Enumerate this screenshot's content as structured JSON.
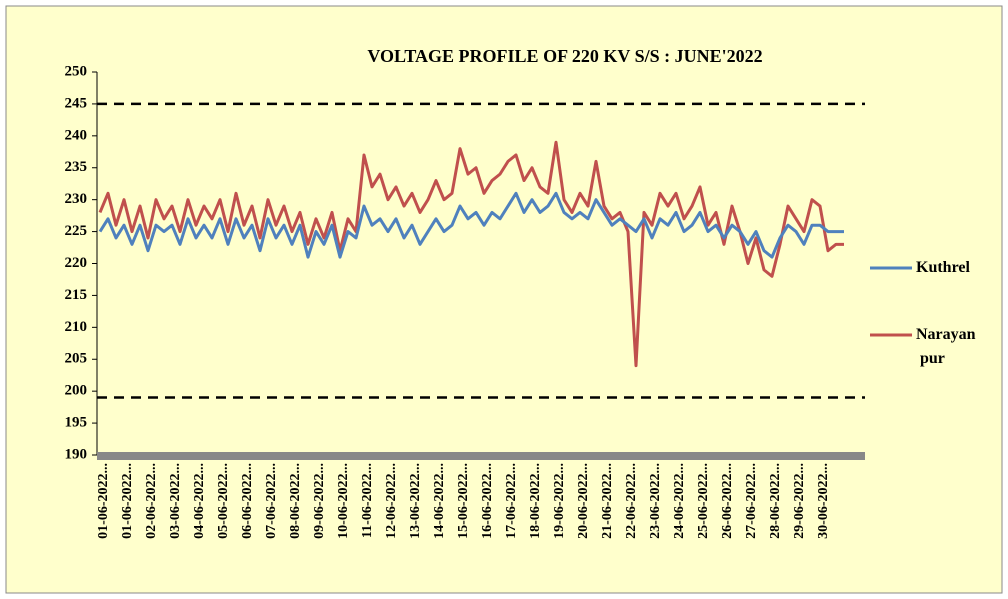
{
  "chart_data": {
    "type": "line",
    "title": "VOLTAGE PROFILE OF 220 KV S/S : JUNE'2022",
    "categories": [
      "01-06-2022...",
      null,
      null,
      "01-06-2022...",
      null,
      null,
      "02-06-2022...",
      null,
      null,
      "03-06-2022...",
      null,
      null,
      "04-06-2022...",
      null,
      null,
      "05-06-2022...",
      null,
      null,
      "06-06-2022...",
      null,
      null,
      "07-06-2022...",
      null,
      null,
      "08-06-2022...",
      null,
      null,
      "09-06-2022...",
      null,
      null,
      "10-06-2022...",
      null,
      null,
      "11-06-2022...",
      null,
      null,
      "12-06-2022...",
      null,
      null,
      "13-06-2022...",
      null,
      null,
      "14-06-2022...",
      null,
      null,
      "15-06-2022...",
      null,
      null,
      "16-06-2022...",
      null,
      null,
      "17-06-2022...",
      null,
      null,
      "18-06-2022...",
      null,
      null,
      "19-06-2022...",
      null,
      null,
      "20-06-2022...",
      null,
      null,
      "21-06-2022...",
      null,
      null,
      "22-06-2022...",
      null,
      null,
      "23-06-2022...",
      null,
      null,
      "24-06-2022...",
      null,
      null,
      "25-06-2022...",
      null,
      null,
      "26-06-2022...",
      null,
      null,
      "27-06-2022...",
      null,
      null,
      "28-06-2022...",
      null,
      null,
      "29-06-2022...",
      null,
      null,
      "30-06-2022...",
      null,
      null,
      null
    ],
    "series": [
      {
        "name": "Kuthrel",
        "color": "#4f81bd",
        "values": [
          225,
          227,
          224,
          226,
          223,
          226,
          222,
          226,
          225,
          226,
          223,
          227,
          224,
          226,
          224,
          227,
          223,
          227,
          224,
          226,
          222,
          227,
          224,
          226,
          223,
          226,
          221,
          225,
          223,
          226,
          221,
          225,
          224,
          229,
          226,
          227,
          225,
          227,
          224,
          226,
          223,
          225,
          227,
          225,
          226,
          229,
          227,
          228,
          226,
          228,
          227,
          229,
          231,
          228,
          230,
          228,
          229,
          231,
          228,
          227,
          228,
          227,
          230,
          228,
          226,
          227,
          226,
          225,
          227,
          224,
          227,
          226,
          228,
          225,
          226,
          228,
          225,
          226,
          224,
          226,
          225,
          223,
          225,
          222,
          221,
          224,
          226,
          225,
          223,
          226,
          226,
          225,
          225,
          225
        ]
      },
      {
        "name": "Narayan pur",
        "color": "#c0504d",
        "values": [
          228,
          231,
          226,
          230,
          225,
          229,
          224,
          230,
          227,
          229,
          225,
          230,
          226,
          229,
          227,
          230,
          225,
          231,
          226,
          229,
          224,
          230,
          226,
          229,
          225,
          228,
          223,
          227,
          224,
          228,
          222,
          227,
          225,
          237,
          232,
          234,
          230,
          232,
          229,
          231,
          228,
          230,
          233,
          230,
          231,
          238,
          234,
          235,
          231,
          233,
          234,
          236,
          237,
          233,
          235,
          232,
          231,
          239,
          230,
          228,
          231,
          229,
          236,
          229,
          227,
          228,
          225,
          204,
          228,
          226,
          231,
          229,
          231,
          227,
          229,
          232,
          226,
          228,
          223,
          229,
          225,
          220,
          224,
          219,
          218,
          223,
          229,
          227,
          225,
          230,
          229,
          222,
          223,
          223
        ]
      }
    ],
    "hlines": [
      245,
      199
    ],
    "hline_color": "#000",
    "ylim": [
      190,
      250
    ],
    "yticks": [
      190,
      195,
      200,
      205,
      210,
      215,
      220,
      225,
      230,
      235,
      240,
      245,
      250
    ],
    "legend": "right",
    "background": "#ffffcc"
  }
}
